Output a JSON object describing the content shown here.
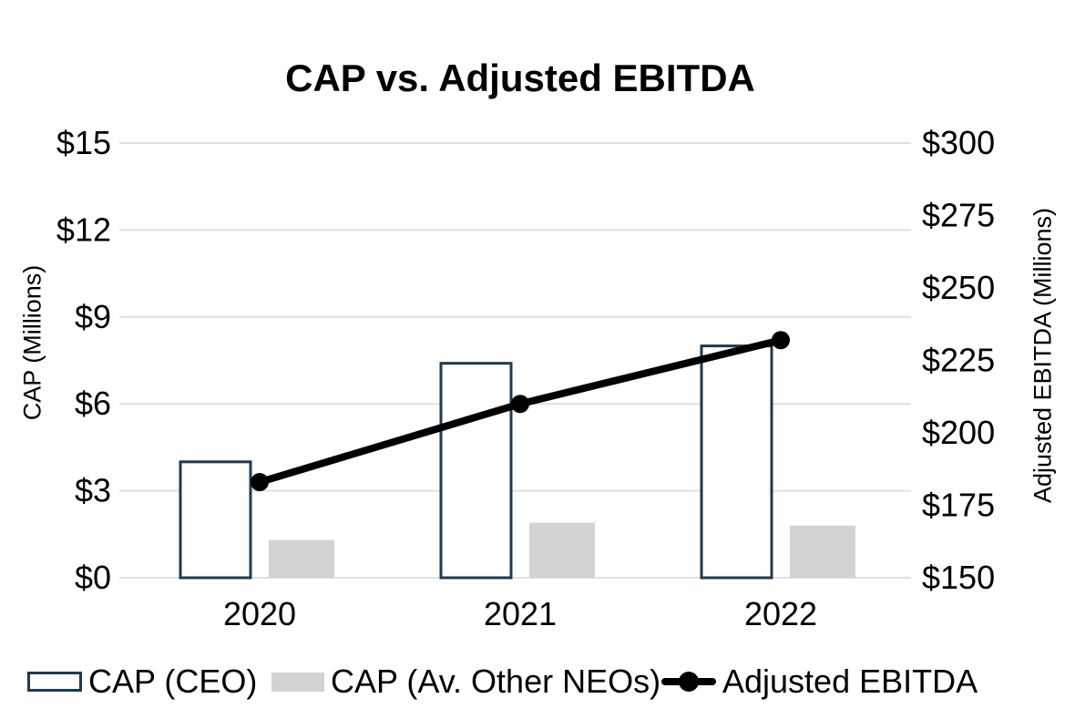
{
  "chart": {
    "title": "CAP vs. Adjusted EBITDA",
    "left_axis": {
      "title": "CAP (Millions)",
      "tick_labels": [
        "$0",
        "$3",
        "$6",
        "$9",
        "$12",
        "$15"
      ]
    },
    "right_axis": {
      "title": "Adjusted EBITDA (Millions)",
      "tick_labels": [
        "$150",
        "$175",
        "$200",
        "$225",
        "$250",
        "$275",
        "$300"
      ]
    },
    "x_axis": {
      "labels": [
        "2020",
        "2021",
        "2022"
      ]
    }
  },
  "legend": {
    "items": [
      {
        "label": "CAP (CEO)",
        "swatch": "outlined-bar-swatch",
        "color": "#1d3a52"
      },
      {
        "label": "CAP (Av. Other NEOs)",
        "swatch": "filled-bar-swatch",
        "color": "#d2d2d2"
      },
      {
        "label": "Adjusted EBITDA",
        "swatch": "line-marker-swatch",
        "color": "#000000"
      }
    ]
  },
  "chart_data": {
    "type": "bar",
    "subtype": "combo-bar-line-dual-axis",
    "title": "CAP vs. Adjusted EBITDA",
    "categories": [
      "2020",
      "2021",
      "2022"
    ],
    "series": [
      {
        "name": "CAP (CEO)",
        "type": "bar",
        "axis": "left",
        "style": "outlined",
        "values": [
          4.0,
          7.4,
          8.0
        ]
      },
      {
        "name": "CAP (Av. Other NEOs)",
        "type": "bar",
        "axis": "left",
        "style": "filled",
        "values": [
          1.3,
          1.9,
          1.8
        ]
      },
      {
        "name": "Adjusted EBITDA",
        "type": "line",
        "axis": "right",
        "values": [
          183,
          210,
          232
        ]
      }
    ],
    "left_ylabel": "CAP (Millions)",
    "left_ylim": [
      0,
      15
    ],
    "left_ticks": [
      0,
      3,
      6,
      9,
      12,
      15
    ],
    "right_ylabel": "Adjusted EBITDA (Millions)",
    "right_ylim": [
      150,
      300
    ],
    "right_ticks": [
      150,
      175,
      200,
      225,
      250,
      275,
      300
    ],
    "grid": true,
    "legend_position": "bottom",
    "colors": {
      "cap_ceo_border": "#1d3a52",
      "cap_ceo_fill": "#ffffff",
      "cap_neo_fill": "#d2d2d2",
      "line": "#000000",
      "gridline": "#e0e0e0",
      "text": "#000000"
    }
  }
}
